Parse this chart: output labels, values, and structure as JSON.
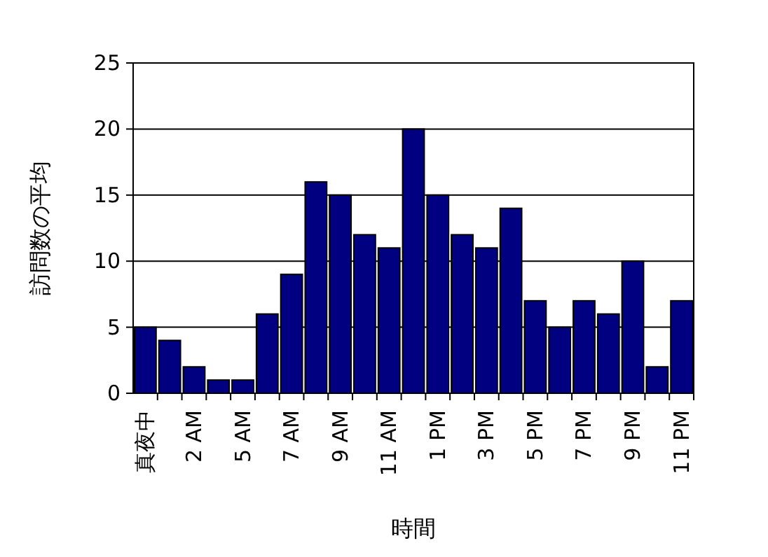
{
  "chart_data": {
    "type": "bar",
    "xlabel": "時間",
    "ylabel": "訪問数の平均",
    "categories": [
      "真夜中",
      null,
      "2 AM",
      null,
      "5 AM",
      null,
      "7 AM",
      null,
      "9 AM",
      null,
      "11 AM",
      null,
      "1 PM",
      null,
      "3 PM",
      null,
      "5 PM",
      null,
      "7 PM",
      null,
      "9 PM",
      null,
      "11 PM"
    ],
    "values": [
      5,
      4,
      2,
      1,
      1,
      6,
      9,
      16,
      15,
      12,
      11,
      20,
      15,
      12,
      11,
      14,
      7,
      5,
      7,
      6,
      10,
      2,
      7
    ],
    "color": "#000080",
    "ylim": [
      0,
      25
    ],
    "yticks": [
      0,
      5,
      10,
      15,
      20,
      25
    ],
    "grid": "y"
  }
}
